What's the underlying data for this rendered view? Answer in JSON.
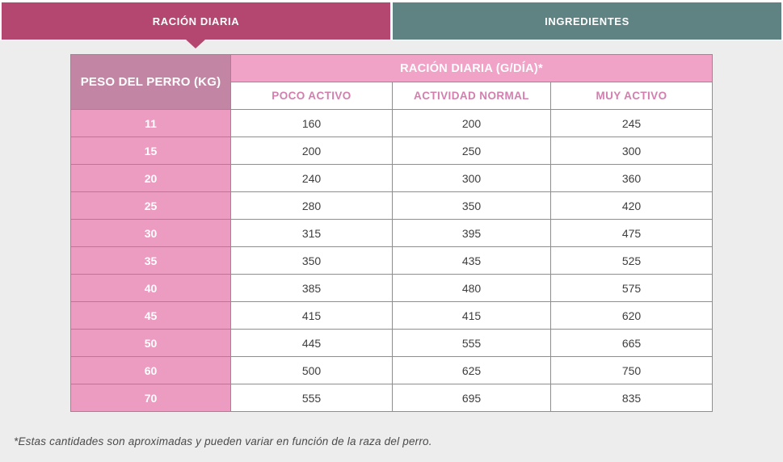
{
  "tabs": [
    {
      "label": "RACIÓN DIARIA",
      "active": true
    },
    {
      "label": "INGREDIENTES",
      "active": false
    }
  ],
  "table": {
    "corner_header": "PESO DEL PERRO (KG)",
    "banner": "RACIÓN DIARIA (G/DÍA)*",
    "activity_headers": [
      "POCO ACTIVO",
      "ACTIVIDAD NORMAL",
      "MUY ACTIVO"
    ],
    "rows": [
      {
        "weight": "11",
        "values": [
          "160",
          "200",
          "245"
        ]
      },
      {
        "weight": "15",
        "values": [
          "200",
          "250",
          "300"
        ]
      },
      {
        "weight": "20",
        "values": [
          "240",
          "300",
          "360"
        ]
      },
      {
        "weight": "25",
        "values": [
          "280",
          "350",
          "420"
        ]
      },
      {
        "weight": "30",
        "values": [
          "315",
          "395",
          "475"
        ]
      },
      {
        "weight": "35",
        "values": [
          "350",
          "435",
          "525"
        ]
      },
      {
        "weight": "40",
        "values": [
          "385",
          "480",
          "575"
        ]
      },
      {
        "weight": "45",
        "values": [
          "415",
          "415",
          "620"
        ]
      },
      {
        "weight": "50",
        "values": [
          "445",
          "555",
          "665"
        ]
      },
      {
        "weight": "60",
        "values": [
          "500",
          "625",
          "750"
        ]
      },
      {
        "weight": "70",
        "values": [
          "555",
          "695",
          "835"
        ]
      }
    ]
  },
  "footnote": "*Estas cantidades son aproximadas y pueden variar en función de la raza del perro.",
  "colors": {
    "tab_active": "#b3476f",
    "tab_inactive": "#5f8283",
    "page_background": "#ededee",
    "corner_header_bg": "#c285a4",
    "banner_bg": "#f0a2c7",
    "weight_cell_bg": "#ec9bc1",
    "cell_border": "#c76da4",
    "activity_header_text": "#d27fae",
    "data_text": "#3e3e3e",
    "footnote_text": "#4a4a4a"
  }
}
